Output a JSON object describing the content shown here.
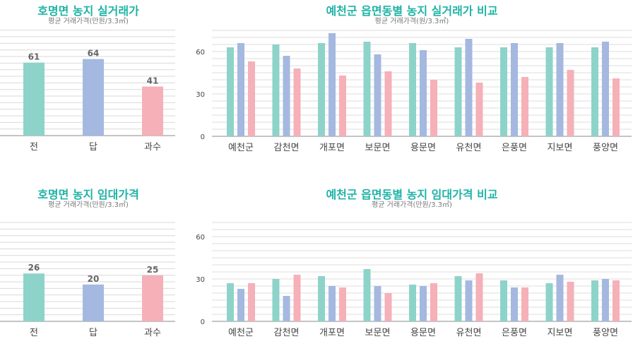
{
  "colors": {
    "title": "#1fb3a6",
    "series1": "#8dd3c9",
    "series2": "#a4b8e0",
    "series3": "#f5b0b8"
  },
  "charts": {
    "sale_hm": {
      "title": "호명면 농지 실거래가",
      "subtitle": "평균 거래가격(만원/3.3㎡)",
      "chart_data": {
        "type": "bar",
        "categories": [
          "전",
          "답",
          "과수"
        ],
        "values": [
          61,
          64,
          41
        ],
        "ylim": [
          0,
          85
        ],
        "grid": true,
        "data_labels": true
      }
    },
    "sale_cmp": {
      "title": "예천군 읍면동별 농지 실거래가 비교",
      "subtitle": "평균 거래가격(원/3.3㎡)",
      "chart_data": {
        "type": "bar",
        "categories": [
          "예천군",
          "감천면",
          "개포면",
          "보문면",
          "용문면",
          "유천면",
          "은풍면",
          "지보면",
          "풍양면"
        ],
        "series": [
          {
            "values": [
              63,
              65,
              66,
              67,
              66,
              63,
              63,
              63,
              63
            ]
          },
          {
            "values": [
              66,
              57,
              73,
              58,
              61,
              69,
              66,
              66,
              67
            ]
          },
          {
            "values": [
              53,
              48,
              43,
              46,
              40,
              38,
              42,
              47,
              41
            ]
          }
        ],
        "yticks": [
          "0",
          "30",
          "60"
        ],
        "ylim": [
          0,
          75
        ],
        "grid": true
      }
    },
    "rent_hm": {
      "title": "호명면 농지 임대가격",
      "subtitle": "평균 거래가격(만원/3.3㎡)",
      "chart_data": {
        "type": "bar",
        "categories": [
          "전",
          "답",
          "과수"
        ],
        "values": [
          26,
          20,
          25
        ],
        "ylim": [
          0,
          56
        ],
        "grid": true,
        "data_labels": true
      }
    },
    "rent_cmp": {
      "title": "예천군 읍면동별 농지 임대가격  비교",
      "subtitle": "평균 거래가격(만원/3.3㎡)",
      "chart_data": {
        "type": "bar",
        "categories": [
          "예천군",
          "감천면",
          "개포면",
          "보문면",
          "용문면",
          "유천면",
          "은풍면",
          "지보면",
          "풍양면"
        ],
        "series": [
          {
            "values": [
              27,
              30,
              32,
              37,
              26,
              32,
              29,
              27,
              29
            ]
          },
          {
            "values": [
              23,
              18,
              25,
              25,
              25,
              29,
              24,
              33,
              30
            ]
          },
          {
            "values": [
              27,
              33,
              24,
              20,
              27,
              34,
              24,
              28,
              29
            ]
          }
        ],
        "yticks": [
          "0",
          "30",
          "60"
        ],
        "ylim": [
          0,
          72
        ],
        "grid": true
      }
    }
  }
}
